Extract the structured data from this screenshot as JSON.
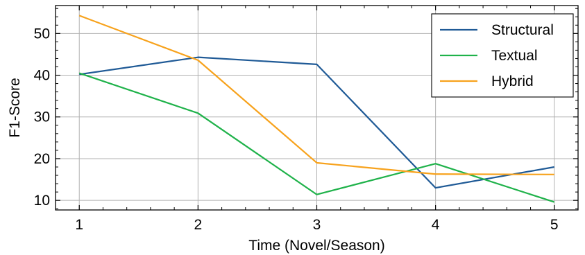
{
  "chart_data": {
    "type": "line",
    "title": "",
    "xlabel": "Time (Novel/Season)",
    "ylabel": "F1-Score",
    "x": [
      1,
      2,
      3,
      4,
      5
    ],
    "xticks": [
      1,
      2,
      3,
      4,
      5
    ],
    "yticks": [
      10,
      20,
      30,
      40,
      50
    ],
    "xlim": [
      0.8,
      5.2
    ],
    "ylim": [
      7.7,
      56.7
    ],
    "grid": true,
    "legend_position": "top-right",
    "series": [
      {
        "name": "Structural",
        "color": "#1f5a96",
        "values": [
          40.2,
          44.3,
          42.6,
          13.0,
          18.0
        ]
      },
      {
        "name": "Textual",
        "color": "#1fb24a",
        "values": [
          40.5,
          30.9,
          11.4,
          18.8,
          9.6
        ]
      },
      {
        "name": "Hybrid",
        "color": "#f7a21c",
        "values": [
          54.3,
          43.6,
          19.0,
          16.3,
          16.2
        ]
      }
    ]
  }
}
